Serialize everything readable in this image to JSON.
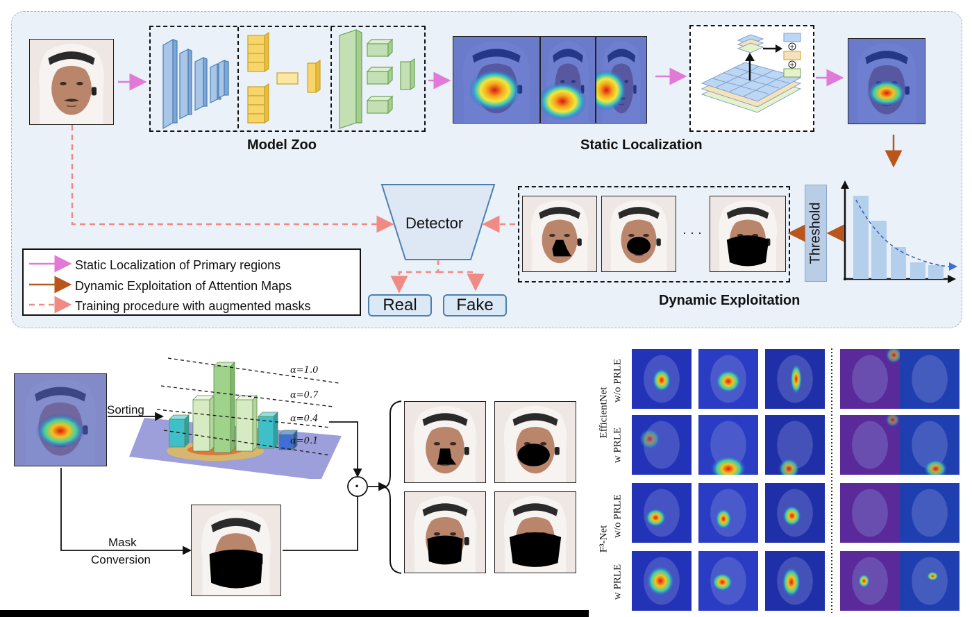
{
  "pipeline": {
    "model_zoo_label": "Model Zoo",
    "static_localization_label": "Static Localization",
    "dynamic_exploitation_label": "Dynamic Exploitation",
    "threshold_label": "Threshold",
    "detector_label": "Detector",
    "ellipsis": "· · ·",
    "outputs": {
      "real": "Real",
      "fake": "Fake"
    }
  },
  "legend": {
    "items": [
      {
        "label": "Static Localization of Primary regions",
        "color": "#e07ad6",
        "style": "solid"
      },
      {
        "label": "Dynamic Exploitation of Attention Maps",
        "color": "#b8561b",
        "style": "solid"
      },
      {
        "label": "Training procedure with augmented masks",
        "color": "#f08a84",
        "style": "dashed"
      }
    ]
  },
  "bottom_left": {
    "sorting_label": "Sorting",
    "mask_label": "Mask",
    "conversion_label": "Conversion",
    "alphas": [
      "α=1.0",
      "α=0.7",
      "α=0.4",
      "α=0.1"
    ],
    "combine_symbol": "·"
  },
  "comparison_grid": {
    "groups": [
      {
        "name": "EfficientNet",
        "rows": [
          "w/o PRLE",
          "w PRLE"
        ]
      },
      {
        "name": "F³-Net",
        "rows": [
          "w/o PRLE",
          "w PRLE"
        ]
      }
    ]
  },
  "colors": {
    "pink_arrow": "#e07ad6",
    "orange_arrow": "#b8561b",
    "dashed_arrow": "#f08a84",
    "panel_bg": "#eaf1f9",
    "cnn_blue": "#a9c6e8",
    "cnn_yellow": "#f7d56a",
    "cnn_green": "#c3e0b4"
  }
}
